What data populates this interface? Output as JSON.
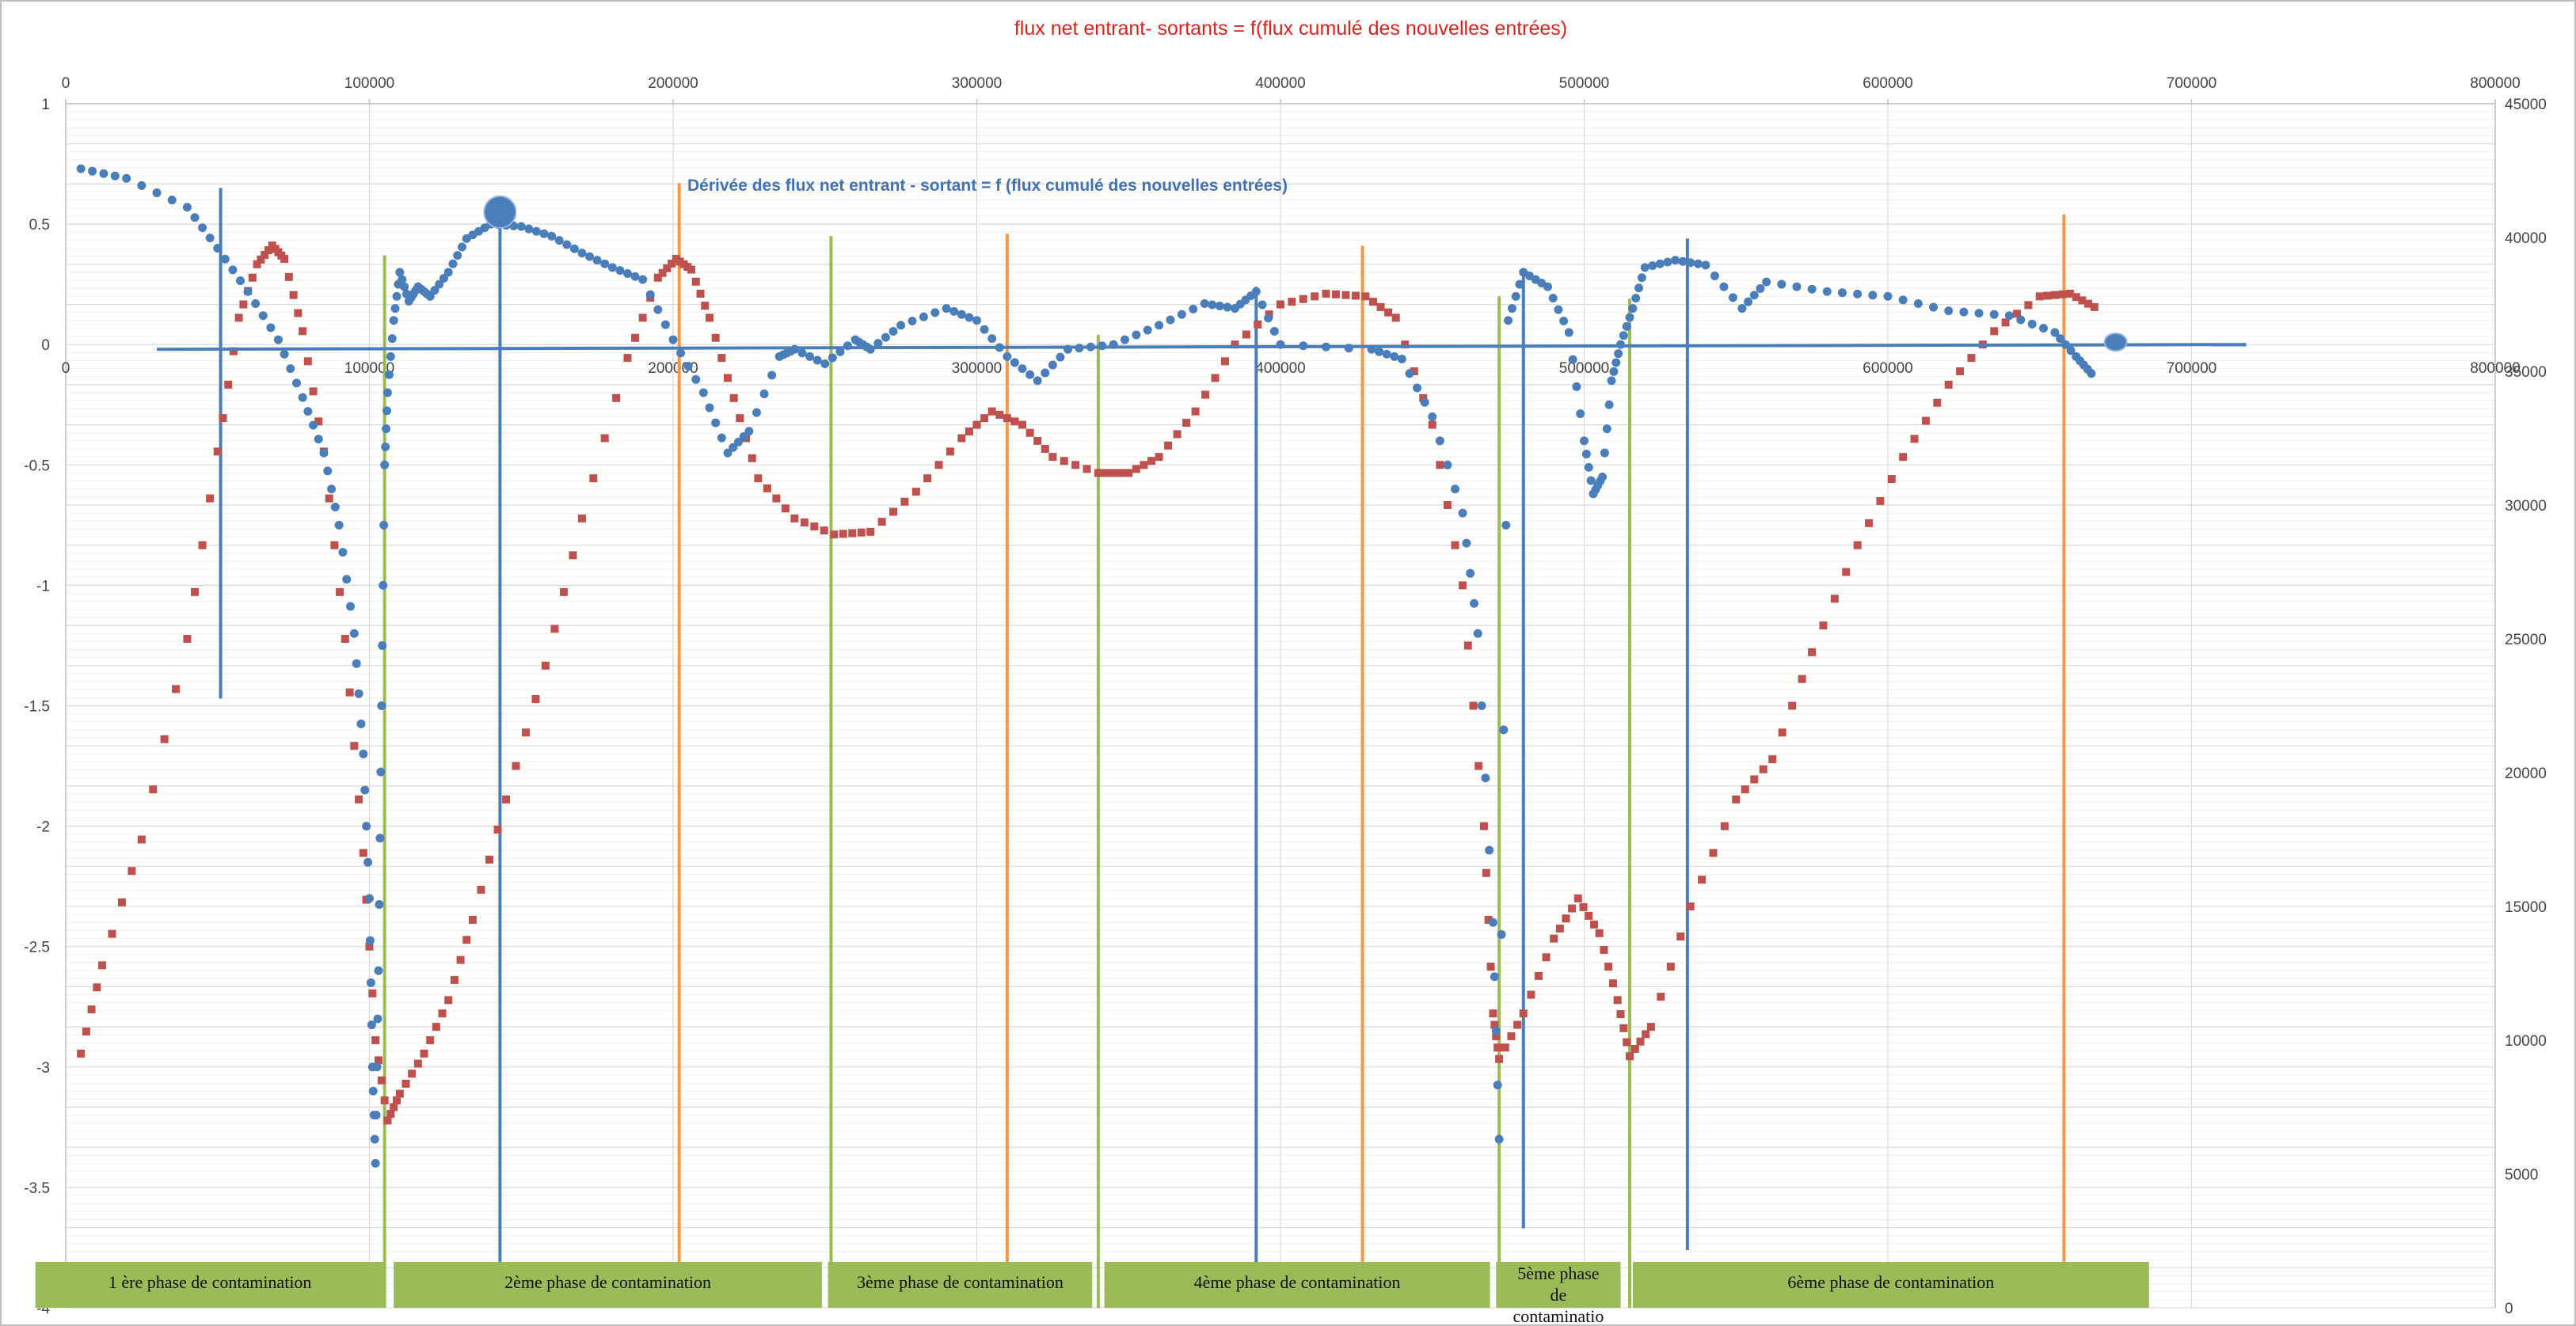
{
  "chart_data": {
    "type": "scatter",
    "title": "flux net entrant- sortants = f(flux cumulé des nouvelles entrées)",
    "annotation": "Dérivée des flux net entrant - sortant = f (flux cumulé des nouvelles entrées)",
    "x_range": [
      0,
      800000
    ],
    "x_ticks": [
      "0",
      "100000",
      "200000",
      "300000",
      "400000",
      "500000",
      "600000",
      "700000",
      "800000"
    ],
    "inner_x_ticks": [
      "0",
      "100000",
      "200000",
      "300000",
      "400000",
      "500000",
      "600000",
      "700000",
      "800000"
    ],
    "y_left_range": [
      -4,
      1
    ],
    "y_left_ticks": [
      "-4",
      "-3.5",
      "-3",
      "-2.5",
      "-2",
      "-1.5",
      "-1",
      "-0.5",
      "0",
      "0.5",
      "1"
    ],
    "y_right_range": [
      0,
      45000
    ],
    "y_right_ticks": [
      "0",
      "5000",
      "10000",
      "15000",
      "20000",
      "25000",
      "30000",
      "35000",
      "40000",
      "45000"
    ],
    "grid": true,
    "colors": {
      "derivative": "#4a7ebb",
      "flux": "#c0504d",
      "phase_start": "#9bbb59",
      "phase_marker": "#4a7ebb",
      "peak": "#f79646",
      "title": "#e0201b",
      "phase_box": "#9bbb59"
    },
    "series": [
      {
        "axis": "left",
        "marker": "circle",
        "anchors": [
          [
            5000,
            0.73
          ],
          [
            20000,
            0.69
          ],
          [
            40000,
            0.57
          ],
          [
            50000,
            0.4
          ],
          [
            60000,
            0.22
          ],
          [
            70000,
            0.02
          ],
          [
            78000,
            -0.22
          ],
          [
            85000,
            -0.45
          ],
          [
            90000,
            -0.75
          ],
          [
            95000,
            -1.2
          ],
          [
            98000,
            -1.7
          ],
          [
            100000,
            -2.3
          ],
          [
            101000,
            -3.0
          ],
          [
            102000,
            -3.4
          ],
          [
            103000,
            -2.6
          ],
          [
            104000,
            -1.5
          ],
          [
            105000,
            -0.5
          ],
          [
            106000,
            -0.2
          ],
          [
            108000,
            0.1
          ],
          [
            110000,
            0.3
          ],
          [
            113000,
            0.18
          ],
          [
            116000,
            0.24
          ],
          [
            120000,
            0.2
          ],
          [
            126000,
            0.3
          ],
          [
            132000,
            0.44
          ],
          [
            140000,
            0.5
          ],
          [
            150000,
            0.49
          ],
          [
            160000,
            0.45
          ],
          [
            170000,
            0.38
          ],
          [
            180000,
            0.32
          ],
          [
            190000,
            0.27
          ],
          [
            200000,
            0.02
          ],
          [
            210000,
            -0.2
          ],
          [
            218000,
            -0.45
          ],
          [
            225000,
            -0.36
          ],
          [
            235000,
            -0.05
          ],
          [
            240000,
            -0.02
          ],
          [
            250000,
            -0.08
          ],
          [
            260000,
            0.02
          ],
          [
            265000,
            -0.02
          ],
          [
            275000,
            0.08
          ],
          [
            290000,
            0.15
          ],
          [
            300000,
            0.1
          ],
          [
            310000,
            -0.05
          ],
          [
            320000,
            -0.15
          ],
          [
            330000,
            -0.02
          ],
          [
            345000,
            0.0
          ],
          [
            360000,
            0.08
          ],
          [
            375000,
            0.17
          ],
          [
            385000,
            0.15
          ],
          [
            392000,
            0.22
          ],
          [
            400000,
            0.0
          ],
          [
            430000,
            -0.02
          ],
          [
            440000,
            -0.06
          ],
          [
            450000,
            -0.3
          ],
          [
            460000,
            -0.7
          ],
          [
            465000,
            -1.2
          ],
          [
            470000,
            -2.4
          ],
          [
            472000,
            -3.3
          ],
          [
            475000,
            0.1
          ],
          [
            480000,
            0.3
          ],
          [
            488000,
            0.24
          ],
          [
            495000,
            0.05
          ],
          [
            500000,
            -0.4
          ],
          [
            503000,
            -0.62
          ],
          [
            506000,
            -0.55
          ],
          [
            509000,
            -0.15
          ],
          [
            512000,
            0.0
          ],
          [
            516000,
            0.15
          ],
          [
            520000,
            0.32
          ],
          [
            530000,
            0.35
          ],
          [
            540000,
            0.33
          ],
          [
            552000,
            0.15
          ],
          [
            560000,
            0.26
          ],
          [
            580000,
            0.22
          ],
          [
            600000,
            0.2
          ],
          [
            620000,
            0.14
          ],
          [
            640000,
            0.12
          ],
          [
            655000,
            0.05
          ],
          [
            662000,
            -0.05
          ],
          [
            667000,
            -0.12
          ]
        ]
      },
      {
        "axis": "right",
        "marker": "square",
        "anchors": [
          [
            5000,
            9500
          ],
          [
            12000,
            12800
          ],
          [
            25000,
            17500
          ],
          [
            40000,
            25000
          ],
          [
            50000,
            32000
          ],
          [
            57000,
            37000
          ],
          [
            63000,
            39000
          ],
          [
            68000,
            39700
          ],
          [
            72000,
            39200
          ],
          [
            78000,
            36500
          ],
          [
            85000,
            32000
          ],
          [
            92000,
            25000
          ],
          [
            98000,
            17000
          ],
          [
            102000,
            10000
          ],
          [
            106000,
            7000
          ],
          [
            110000,
            8000
          ],
          [
            118000,
            9500
          ],
          [
            126000,
            11500
          ],
          [
            134000,
            14500
          ],
          [
            145000,
            19000
          ],
          [
            158000,
            24000
          ],
          [
            170000,
            29500
          ],
          [
            185000,
            35500
          ],
          [
            195000,
            38500
          ],
          [
            201000,
            39200
          ],
          [
            206000,
            38800
          ],
          [
            212000,
            37000
          ],
          [
            220000,
            34000
          ],
          [
            228000,
            31000
          ],
          [
            240000,
            29500
          ],
          [
            253000,
            28900
          ],
          [
            265000,
            29000
          ],
          [
            280000,
            30500
          ],
          [
            295000,
            32500
          ],
          [
            305000,
            33500
          ],
          [
            315000,
            33000
          ],
          [
            325000,
            31800
          ],
          [
            340000,
            31200
          ],
          [
            350000,
            31200
          ],
          [
            360000,
            31800
          ],
          [
            372000,
            33500
          ],
          [
            385000,
            36000
          ],
          [
            400000,
            37500
          ],
          [
            415000,
            37900
          ],
          [
            428000,
            37800
          ],
          [
            438000,
            37000
          ],
          [
            450000,
            33000
          ],
          [
            460000,
            27000
          ],
          [
            467000,
            18000
          ],
          [
            470000,
            11000
          ],
          [
            472000,
            9300
          ],
          [
            480000,
            11000
          ],
          [
            490000,
            13800
          ],
          [
            498000,
            15300
          ],
          [
            505000,
            14000
          ],
          [
            511000,
            11500
          ],
          [
            515000,
            9400
          ],
          [
            522000,
            10500
          ],
          [
            535000,
            15000
          ],
          [
            550000,
            19000
          ],
          [
            562000,
            20500
          ],
          [
            575000,
            24500
          ],
          [
            590000,
            28500
          ],
          [
            605000,
            31800
          ],
          [
            620000,
            34500
          ],
          [
            635000,
            36500
          ],
          [
            650000,
            37800
          ],
          [
            660000,
            37900
          ],
          [
            668000,
            37400
          ]
        ]
      }
    ],
    "vertical_lines": [
      {
        "kind": "phase_marker",
        "x": 51000,
        "y_top": 0.65,
        "y_bottom": -1.47
      },
      {
        "kind": "phase_start",
        "x": 105000,
        "y_top": 0.37,
        "y_bottom": -4
      },
      {
        "kind": "phase_marker",
        "x": 143000,
        "y_top": 0.51,
        "y_bottom": -3.85
      },
      {
        "kind": "peak",
        "x": 202000,
        "y_top": 0.67,
        "y_bottom": -4
      },
      {
        "kind": "phase_start",
        "x": 252000,
        "y_top": 0.45,
        "y_bottom": -4
      },
      {
        "kind": "peak",
        "x": 310000,
        "y_top": 0.46,
        "y_bottom": -4
      },
      {
        "kind": "phase_start",
        "x": 340000,
        "y_top": 0.04,
        "y_bottom": -4
      },
      {
        "kind": "phase_marker",
        "x": 392000,
        "y_top": 0.24,
        "y_bottom": -3.87
      },
      {
        "kind": "peak",
        "x": 427000,
        "y_top": 0.41,
        "y_bottom": -4
      },
      {
        "kind": "phase_start",
        "x": 472000,
        "y_top": 0.2,
        "y_bottom": -4
      },
      {
        "kind": "phase_marker",
        "x": 480000,
        "y_top": 0.3,
        "y_bottom": -3.67
      },
      {
        "kind": "phase_start",
        "x": 515000,
        "y_top": 0.19,
        "y_bottom": -4
      },
      {
        "kind": "phase_marker",
        "x": 534000,
        "y_top": 0.44,
        "y_bottom": -3.76
      },
      {
        "kind": "peak",
        "x": 658000,
        "y_top": 0.54,
        "y_bottom": -3.9
      }
    ],
    "zero_line": {
      "x_start": 30000,
      "x_end": 718000
    },
    "highlight_points": [
      {
        "x": 143000,
        "y": 0.55,
        "size": "large"
      },
      {
        "x": 675000,
        "y": 0.01,
        "size": "small"
      }
    ],
    "phases": [
      {
        "label": "1 ère phase de contamination",
        "x_start": -10000,
        "x_end": 105000
      },
      {
        "label": "2ème phase de contamination",
        "x_start": 108000,
        "x_end": 249000
      },
      {
        "label": "3ème  phase de contamination",
        "x_start": 251000,
        "x_end": 338000
      },
      {
        "label": "4ème phase de contamination",
        "x_start": 342000,
        "x_end": 469000
      },
      {
        "label": "5ème  phase de contaminatio",
        "x_start": 471000,
        "x_end": 512000
      },
      {
        "label": "6ème  phase de contamination",
        "x_start": 516000,
        "x_end": 686000
      }
    ]
  }
}
